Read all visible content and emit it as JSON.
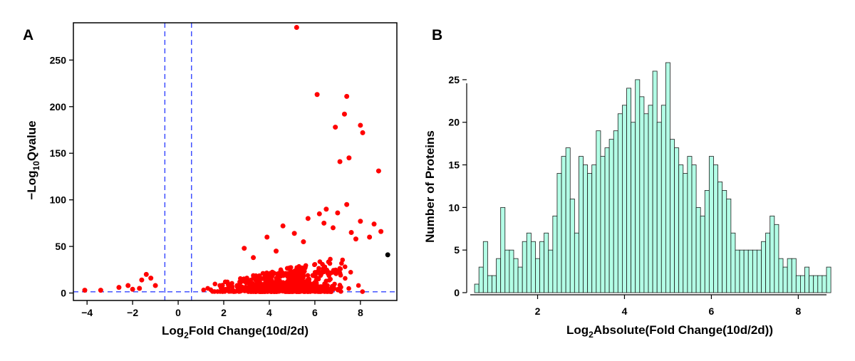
{
  "chart_data": [
    {
      "type": "scatter",
      "panel_label": "A",
      "title": "",
      "xlabel": {
        "base": "Log",
        "sub": "2",
        "rest": "Fold Change(10d/2d)"
      },
      "ylabel": {
        "base": "−Log",
        "sub": "10",
        "rest": "Qvalue"
      },
      "xlim": [
        -4.6,
        9.6
      ],
      "ylim": [
        -8,
        290
      ],
      "xticks": [
        -4,
        -2,
        0,
        2,
        4,
        6,
        8
      ],
      "yticks": [
        0,
        50,
        100,
        150,
        200,
        250
      ],
      "xtick_labels": [
        "−4",
        "−2",
        "0",
        "2",
        "4",
        "6",
        "8"
      ],
      "ytick_labels": [
        "0",
        "50",
        "100",
        "150",
        "200",
        "250"
      ],
      "threshold_lines": {
        "x": [
          -0.585,
          0.585
        ],
        "y": [
          1.3
        ]
      },
      "colors": {
        "significant": "#ff0000",
        "other": "#000000",
        "threshold": "#3344ff"
      },
      "highlight_points": [
        {
          "x": 5.2,
          "y": 285
        },
        {
          "x": 6.1,
          "y": 213
        },
        {
          "x": 7.4,
          "y": 211
        },
        {
          "x": 7.3,
          "y": 192
        },
        {
          "x": 8.0,
          "y": 180
        },
        {
          "x": 6.9,
          "y": 178
        },
        {
          "x": 8.1,
          "y": 172
        },
        {
          "x": 7.5,
          "y": 145
        },
        {
          "x": 7.1,
          "y": 141
        },
        {
          "x": 8.8,
          "y": 131
        },
        {
          "x": 6.5,
          "y": 90
        },
        {
          "x": 7.4,
          "y": 95
        },
        {
          "x": 8.0,
          "y": 77
        },
        {
          "x": 8.6,
          "y": 74
        },
        {
          "x": 8.9,
          "y": 66
        },
        {
          "x": 6.8,
          "y": 70
        },
        {
          "x": 6.2,
          "y": 85
        },
        {
          "x": 5.7,
          "y": 80
        },
        {
          "x": 4.6,
          "y": 72
        },
        {
          "x": 3.9,
          "y": 60
        },
        {
          "x": 2.9,
          "y": 48
        },
        {
          "x": 5.1,
          "y": 64
        },
        {
          "x": 7.0,
          "y": 86
        },
        {
          "x": 7.8,
          "y": 58
        },
        {
          "x": 8.4,
          "y": 60
        },
        {
          "x": 7.6,
          "y": 65
        },
        {
          "x": 6.4,
          "y": 75
        },
        {
          "x": 5.5,
          "y": 55
        },
        {
          "x": 4.3,
          "y": 45
        },
        {
          "x": 3.3,
          "y": 38
        },
        {
          "x": -1.4,
          "y": 20
        },
        {
          "x": -1.6,
          "y": 14
        },
        {
          "x": -1.2,
          "y": 16
        },
        {
          "x": -1.0,
          "y": 8
        },
        {
          "x": -4.1,
          "y": 3
        },
        {
          "x": -3.4,
          "y": 3
        },
        {
          "x": -2.6,
          "y": 6
        },
        {
          "x": -2.2,
          "y": 8
        },
        {
          "x": -2.0,
          "y": 4
        },
        {
          "x": -1.7,
          "y": 5
        }
      ],
      "other_points": [
        {
          "x": 9.2,
          "y": 41
        }
      ],
      "cloud": {
        "count": 640,
        "x_range": [
          0.7,
          8.4
        ],
        "peak_x": 4.8,
        "note": "dense band of significant up-regulated proteins"
      }
    },
    {
      "type": "bar",
      "panel_label": "B",
      "title": "",
      "xlabel": {
        "base": "Log",
        "sub": "2",
        "rest": "Absolute(Fold Change(10d/2d))"
      },
      "ylabel": "Number of Proteins",
      "bin_start": 0.55,
      "bin_width": 0.1,
      "values": [
        1,
        3,
        6,
        2,
        2,
        4,
        10,
        5,
        5,
        4,
        3,
        6,
        7,
        6,
        4,
        6,
        7,
        5,
        9,
        14,
        16,
        17,
        11,
        7,
        16,
        15,
        14,
        15,
        19,
        16,
        17,
        18,
        19,
        21,
        22,
        24,
        20,
        25,
        23,
        21,
        22,
        26,
        20,
        22,
        27,
        18,
        17,
        15,
        14,
        16,
        15,
        10,
        9,
        12,
        16,
        15,
        13,
        12,
        11,
        7,
        5,
        5,
        5,
        5,
        5,
        5,
        6,
        7,
        9,
        8,
        4,
        3,
        4,
        4,
        2,
        2,
        3,
        2,
        2,
        2,
        2,
        3
      ],
      "bar_fill": "#b3ffe6",
      "bar_stroke": "#1a1a1a",
      "xlim": [
        0.45,
        8.65
      ],
      "ylim": [
        0,
        27.5
      ],
      "xticks": [
        2,
        4,
        6,
        8
      ],
      "yticks": [
        0,
        5,
        10,
        15,
        20,
        25
      ],
      "xtick_labels": [
        "2",
        "4",
        "6",
        "8"
      ],
      "ytick_labels": [
        "0",
        "5",
        "10",
        "15",
        "20",
        "25"
      ]
    }
  ]
}
